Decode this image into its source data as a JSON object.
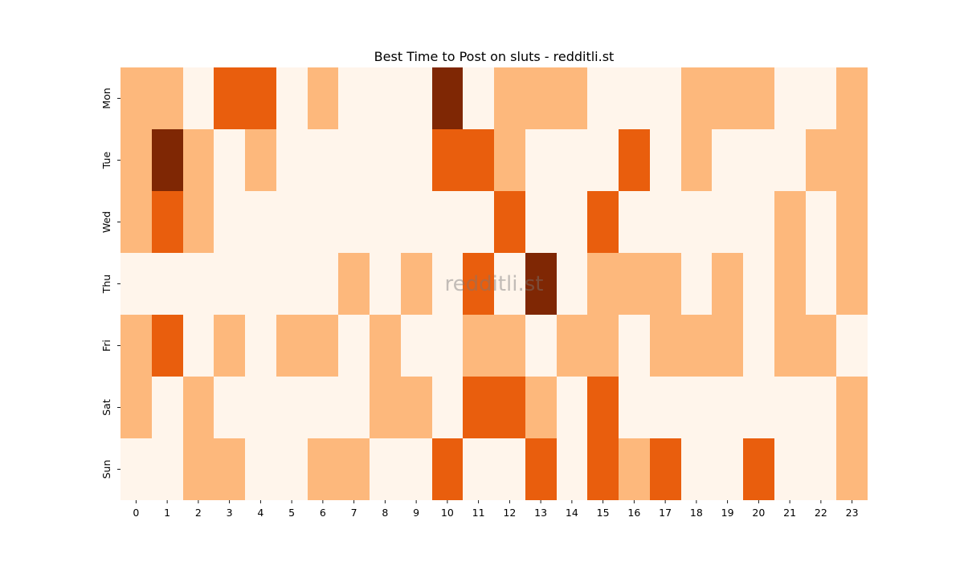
{
  "chart_data": {
    "type": "heatmap",
    "title": "Best Time to Post on sluts - redditli.st",
    "xlabel": "",
    "ylabel": "",
    "x_categories": [
      "0",
      "1",
      "2",
      "3",
      "4",
      "5",
      "6",
      "7",
      "8",
      "9",
      "10",
      "11",
      "12",
      "13",
      "14",
      "15",
      "16",
      "17",
      "18",
      "19",
      "20",
      "21",
      "22",
      "23"
    ],
    "y_categories": [
      "Mon",
      "Tue",
      "Wed",
      "Thu",
      "Fri",
      "Sat",
      "Sun"
    ],
    "values": [
      [
        1,
        1,
        0,
        2,
        2,
        0,
        1,
        0,
        0,
        0,
        3,
        0,
        1,
        1,
        1,
        0,
        0,
        0,
        1,
        1,
        1,
        0,
        0,
        1
      ],
      [
        1,
        3,
        1,
        0,
        1,
        0,
        0,
        0,
        0,
        0,
        2,
        2,
        1,
        0,
        0,
        0,
        2,
        0,
        1,
        0,
        0,
        0,
        1,
        1
      ],
      [
        1,
        2,
        1,
        0,
        0,
        0,
        0,
        0,
        0,
        0,
        0,
        0,
        2,
        0,
        0,
        2,
        0,
        0,
        0,
        0,
        0,
        1,
        0,
        1
      ],
      [
        0,
        0,
        0,
        0,
        0,
        0,
        0,
        1,
        0,
        1,
        0,
        2,
        0,
        3,
        0,
        1,
        1,
        1,
        0,
        1,
        0,
        1,
        0,
        1
      ],
      [
        1,
        2,
        0,
        1,
        0,
        1,
        1,
        0,
        1,
        0,
        0,
        1,
        1,
        0,
        1,
        1,
        0,
        1,
        1,
        1,
        0,
        1,
        1,
        0
      ],
      [
        1,
        0,
        1,
        0,
        0,
        0,
        0,
        0,
        1,
        1,
        0,
        2,
        2,
        1,
        0,
        2,
        0,
        0,
        0,
        0,
        0,
        0,
        0,
        1
      ],
      [
        0,
        0,
        1,
        1,
        0,
        0,
        1,
        1,
        0,
        0,
        2,
        0,
        0,
        2,
        0,
        2,
        1,
        2,
        0,
        0,
        2,
        0,
        0,
        1
      ]
    ],
    "colormap": [
      "#fff5eb",
      "#fdb87c",
      "#e95e0d",
      "#7f2704"
    ],
    "colorbar": false,
    "grid": false,
    "watermark": "redditli.st"
  }
}
